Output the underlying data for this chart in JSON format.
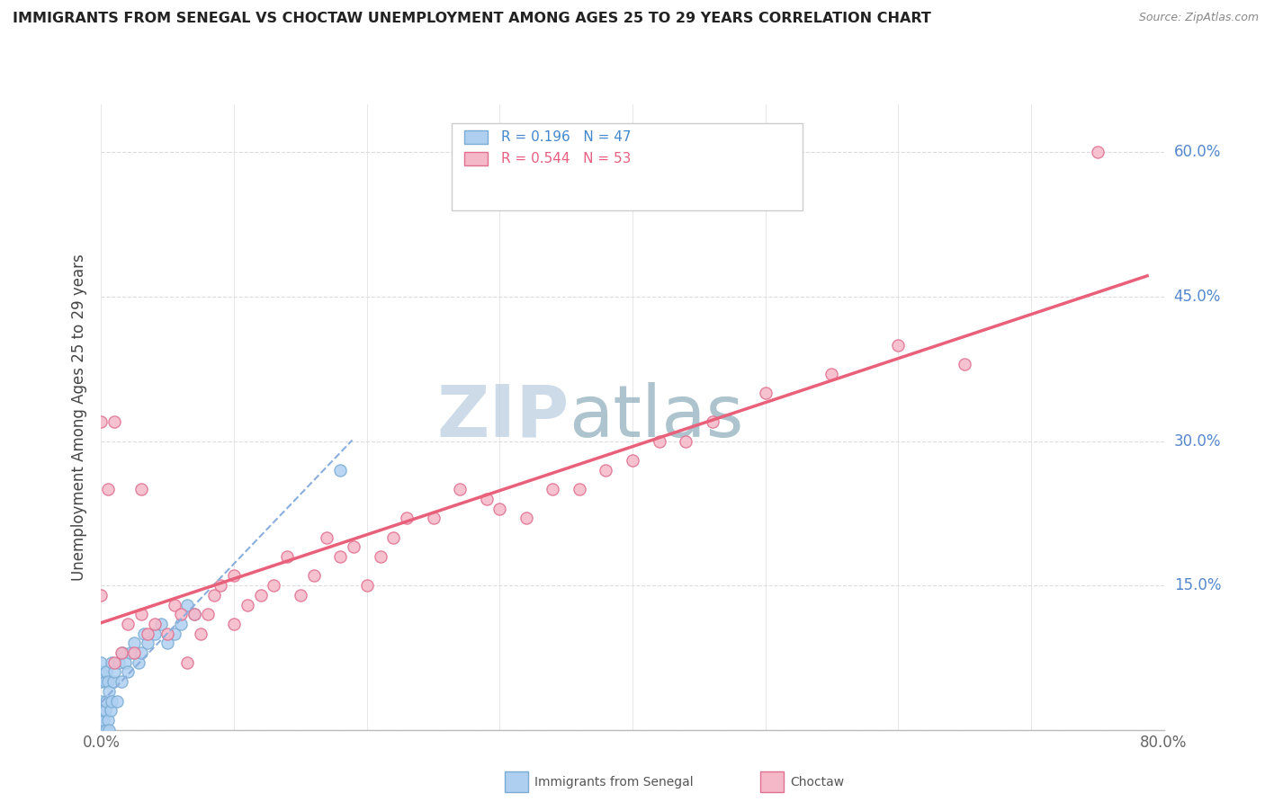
{
  "title": "IMMIGRANTS FROM SENEGAL VS CHOCTAW UNEMPLOYMENT AMONG AGES 25 TO 29 YEARS CORRELATION CHART",
  "source": "Source: ZipAtlas.com",
  "ylabel": "Unemployment Among Ages 25 to 29 years",
  "xlim": [
    0.0,
    0.8
  ],
  "ylim": [
    0.0,
    0.65
  ],
  "xticks": [
    0.0,
    0.1,
    0.2,
    0.3,
    0.4,
    0.5,
    0.6,
    0.7,
    0.8
  ],
  "xticklabels": [
    "0.0%",
    "",
    "",
    "",
    "",
    "",
    "",
    "",
    "80.0%"
  ],
  "yticks": [
    0.0,
    0.15,
    0.3,
    0.45,
    0.6
  ],
  "yticklabels": [
    "",
    "15.0%",
    "30.0%",
    "45.0%",
    "60.0%"
  ],
  "legend_r1": "R = 0.196",
  "legend_n1": "N = 47",
  "legend_r2": "R = 0.544",
  "legend_n2": "N = 53",
  "color_senegal": "#AECFF0",
  "color_choctaw": "#F5B8C8",
  "color_senegal_edge": "#7BADD4",
  "color_choctaw_edge": "#E07090",
  "color_senegal_line": "#8AAEDD",
  "color_choctaw_line": "#E8607A",
  "watermark_zip": "ZIP",
  "watermark_atlas": "atlas",
  "watermark_color_zip": "#B8CDE0",
  "watermark_color_atlas": "#8AAAB8",
  "background_color": "#FFFFFF",
  "grid_color": "#DDDDDD",
  "senegal_x": [
    0.0,
    0.0,
    0.0,
    0.0,
    0.0,
    0.0,
    0.0,
    0.0,
    0.0,
    0.0,
    0.002,
    0.002,
    0.002,
    0.003,
    0.003,
    0.004,
    0.004,
    0.004,
    0.005,
    0.005,
    0.006,
    0.006,
    0.007,
    0.008,
    0.008,
    0.009,
    0.01,
    0.012,
    0.013,
    0.015,
    0.016,
    0.018,
    0.02,
    0.022,
    0.025,
    0.028,
    0.03,
    0.032,
    0.035,
    0.04,
    0.045,
    0.05,
    0.055,
    0.06,
    0.065,
    0.07,
    0.18
  ],
  "senegal_y": [
    0.0,
    0.0,
    0.0,
    0.0,
    0.01,
    0.02,
    0.03,
    0.05,
    0.06,
    0.07,
    0.0,
    0.01,
    0.02,
    0.02,
    0.05,
    0.0,
    0.03,
    0.06,
    0.01,
    0.05,
    0.0,
    0.04,
    0.02,
    0.03,
    0.07,
    0.05,
    0.06,
    0.03,
    0.07,
    0.05,
    0.08,
    0.07,
    0.06,
    0.08,
    0.09,
    0.07,
    0.08,
    0.1,
    0.09,
    0.1,
    0.11,
    0.09,
    0.1,
    0.11,
    0.13,
    0.12,
    0.27
  ],
  "choctaw_x": [
    0.0,
    0.0,
    0.005,
    0.01,
    0.01,
    0.015,
    0.02,
    0.025,
    0.03,
    0.03,
    0.035,
    0.04,
    0.05,
    0.055,
    0.06,
    0.065,
    0.07,
    0.075,
    0.08,
    0.085,
    0.09,
    0.1,
    0.1,
    0.11,
    0.12,
    0.13,
    0.14,
    0.15,
    0.16,
    0.17,
    0.18,
    0.19,
    0.2,
    0.21,
    0.22,
    0.23,
    0.25,
    0.27,
    0.29,
    0.3,
    0.32,
    0.34,
    0.36,
    0.38,
    0.4,
    0.42,
    0.44,
    0.46,
    0.5,
    0.55,
    0.6,
    0.65,
    0.75
  ],
  "choctaw_y": [
    0.32,
    0.14,
    0.25,
    0.07,
    0.32,
    0.08,
    0.11,
    0.08,
    0.12,
    0.25,
    0.1,
    0.11,
    0.1,
    0.13,
    0.12,
    0.07,
    0.12,
    0.1,
    0.12,
    0.14,
    0.15,
    0.11,
    0.16,
    0.13,
    0.14,
    0.15,
    0.18,
    0.14,
    0.16,
    0.2,
    0.18,
    0.19,
    0.15,
    0.18,
    0.2,
    0.22,
    0.22,
    0.25,
    0.24,
    0.23,
    0.22,
    0.25,
    0.25,
    0.27,
    0.28,
    0.3,
    0.3,
    0.32,
    0.35,
    0.37,
    0.4,
    0.38,
    0.6
  ]
}
